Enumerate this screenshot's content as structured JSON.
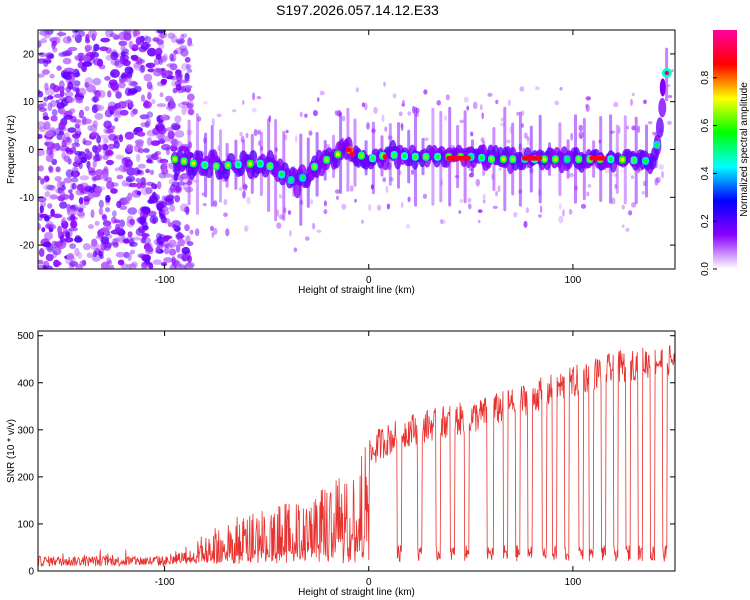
{
  "title": "S197.2026.057.14.12.E33",
  "chart_data": [
    {
      "type": "heatmap",
      "title": "S197.2026.057.14.12.E33",
      "xlabel": "Height of straight line (km)",
      "ylabel": "Frequency (Hz)",
      "xlim": [
        -162,
        150
      ],
      "ylim": [
        -25,
        25
      ],
      "xticks": [
        -100,
        0,
        100
      ],
      "yticks": [
        -20,
        -10,
        0,
        10,
        20
      ],
      "colorbar": {
        "label": "Normalized spectral amplitude",
        "range": [
          0,
          1
        ],
        "ticks": [
          "0.0",
          "0.2",
          "0.4",
          "0.6",
          "0.8"
        ],
        "colors": [
          "#ffffff",
          "#8a00ff",
          "#0000ff",
          "#00ffff",
          "#00ff00",
          "#ffff00",
          "#ff0000",
          "#ff00a0"
        ]
      },
      "ridge": {
        "x": [
          -95,
          -85,
          -75,
          -60,
          -50,
          -40,
          -35,
          -30,
          -25,
          -20,
          -15,
          -10,
          -5,
          0,
          10,
          20,
          30,
          40,
          50,
          60,
          70,
          80,
          90,
          100,
          110,
          120,
          140,
          146
        ],
        "y": [
          -2,
          -3,
          -3.5,
          -3,
          -3,
          -6,
          -7,
          -5,
          -3,
          -2,
          -1,
          0,
          -1,
          -2,
          -1,
          -1.5,
          -1.5,
          -1.5,
          -1.5,
          -2,
          -2,
          -2,
          -2,
          -2,
          -2,
          -2,
          -2.5,
          16
        ]
      }
    },
    {
      "type": "line",
      "xlabel": "Height of straight line (km)",
      "ylabel": "SNR (10 * v/v)",
      "xlim": [
        -162,
        150
      ],
      "ylim": [
        0,
        510
      ],
      "xticks": [
        -100,
        0,
        100
      ],
      "yticks": [
        0,
        100,
        200,
        300,
        400,
        500
      ],
      "color": "#e8322f",
      "series": [
        {
          "name": "SNR",
          "x": [
            -162,
            -140,
            -120,
            -100,
            -90,
            -80,
            -70,
            -60,
            -50,
            -40,
            -30,
            -20,
            -10,
            -5,
            0,
            5,
            10,
            15,
            20,
            30,
            40,
            50,
            60,
            70,
            80,
            90,
            100,
            110,
            120,
            130,
            140,
            150
          ],
          "y": [
            15,
            18,
            22,
            25,
            30,
            55,
            75,
            90,
            100,
            110,
            120,
            140,
            170,
            200,
            240,
            270,
            280,
            290,
            300,
            310,
            320,
            325,
            340,
            355,
            370,
            385,
            400,
            420,
            430,
            440,
            445,
            450
          ]
        }
      ]
    }
  ]
}
